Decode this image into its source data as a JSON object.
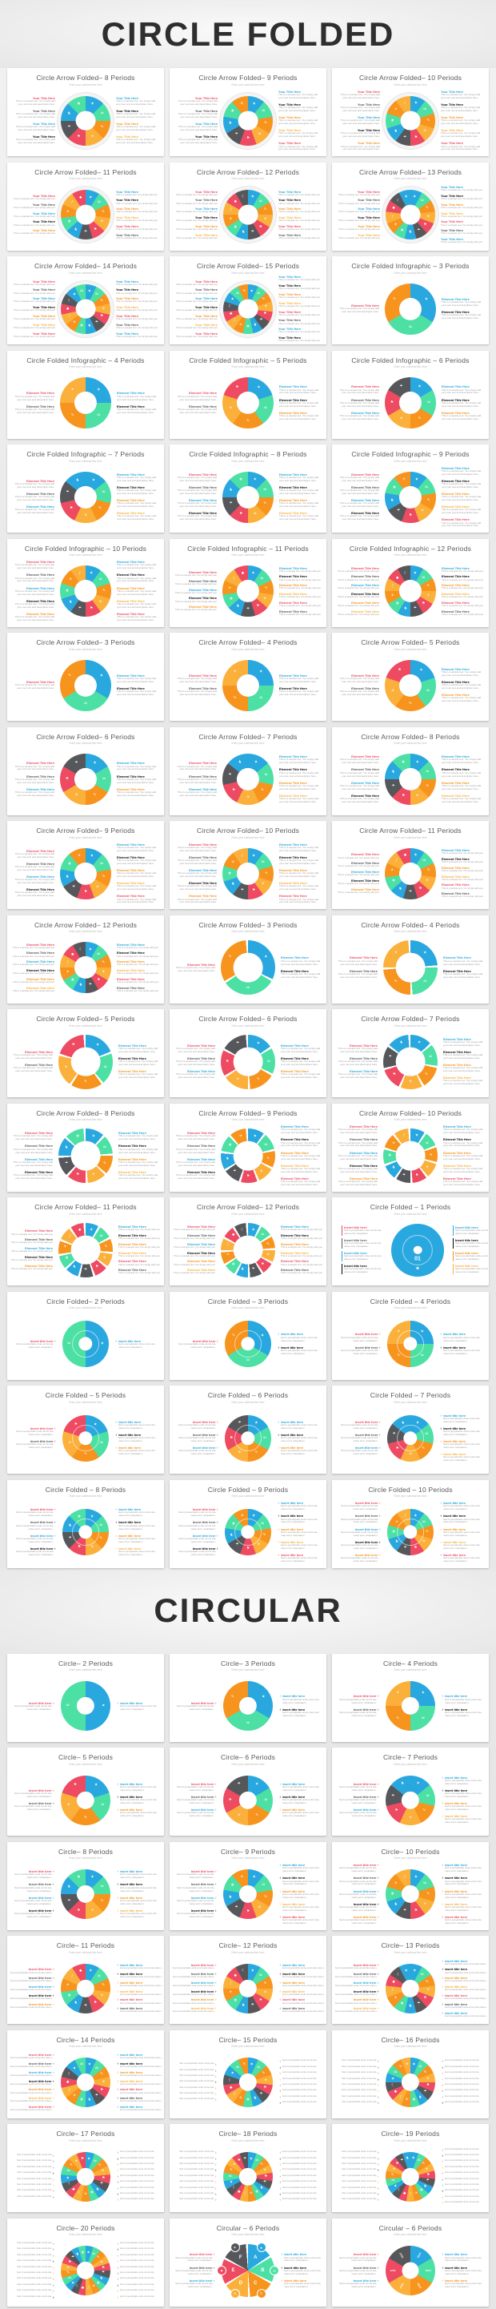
{
  "slide_common": {
    "subtitle": "Enter your subhead line here",
    "label_styles": {
      "your": {
        "label": "Your Title Here",
        "desc": "This is a sample text. You simply add your own text and description here."
      },
      "element": {
        "label": "Element Title Here",
        "desc": "This is a sample text. You simply add your own text and description here."
      },
      "insert": {
        "label": "Insert title here",
        "desc": "Sed ut perspiciatis unde omnis iste natus error voluptatem."
      },
      "lines": {
        "label": "",
        "desc": "Sed ut perspiciatis unde omnis iste"
      }
    },
    "palette": [
      "#29a8e0",
      "#4be9f",
      "#f7941e",
      "#fbb03b",
      "#ee4a62",
      "#56575b"
    ],
    "palette_mint": "#4ce0a4",
    "icons": [
      "★",
      "✉",
      "✎",
      "☀",
      "⚑",
      "☂",
      "♞",
      "❀",
      "✈",
      "♪",
      "◆",
      "☾"
    ]
  },
  "sections": [
    {
      "id": "circle-folded",
      "header": "CIRCLE FOLDED",
      "rows": [
        [
          {
            "title": "Circle Arrow Folded– 8 Periods",
            "n": 8,
            "style": "folded",
            "labels": "your"
          },
          {
            "title": "Circle Arrow Folded– 9 Periods",
            "n": 9,
            "style": "folded",
            "labels": "your"
          },
          {
            "title": "Circle Arrow Folded– 10 Periods",
            "n": 10,
            "style": "folded",
            "labels": "your"
          }
        ],
        [
          {
            "title": "Circle Arrow Folded– 11 Periods",
            "n": 11,
            "style": "folded",
            "labels": "your"
          },
          {
            "title": "Circle Arrow Folded– 12 Periods",
            "n": 12,
            "style": "folded",
            "labels": "your"
          },
          {
            "title": "Circle Arrow Folded– 13 Periods",
            "n": 13,
            "style": "folded",
            "labels": "your"
          }
        ],
        [
          {
            "title": "Circle Arrow Folded– 14 Periods",
            "n": 14,
            "style": "folded",
            "labels": "your"
          },
          {
            "title": "Circle Arrow Folded– 15 Periods",
            "n": 15,
            "style": "folded",
            "labels": "your"
          },
          {
            "title": "Circle Folded Infographic – 3 Periods",
            "n": 3,
            "style": "folded2",
            "labels": "element"
          }
        ],
        [
          {
            "title": "Circle Folded Infographic – 4 Periods",
            "n": 4,
            "style": "folded2",
            "labels": "element"
          },
          {
            "title": "Circle Folded Infographic – 5 Periods",
            "n": 5,
            "style": "folded2",
            "labels": "element"
          },
          {
            "title": "Circle Folded Infographic – 6 Periods",
            "n": 6,
            "style": "folded2",
            "labels": "element"
          }
        ],
        [
          {
            "title": "Circle Folded Infographic – 7 Periods",
            "n": 7,
            "style": "folded2",
            "labels": "element"
          },
          {
            "title": "Circle Folded Infographic – 8 Periods",
            "n": 8,
            "style": "folded2",
            "labels": "element"
          },
          {
            "title": "Circle Folded Infographic – 9 Periods",
            "n": 9,
            "style": "folded2",
            "labels": "element"
          }
        ],
        [
          {
            "title": "Circle Folded Infographic – 10 Periods",
            "n": 10,
            "style": "folded2",
            "labels": "element"
          },
          {
            "title": "Circle Folded Infographic – 11 Periods",
            "n": 11,
            "style": "folded2",
            "labels": "element"
          },
          {
            "title": "Circle Folded Infographic – 12 Periods",
            "n": 12,
            "style": "folded2",
            "labels": "element"
          }
        ],
        [
          {
            "title": "Circle Arrow Folded– 3 Periods",
            "n": 3,
            "style": "folded2",
            "labels": "element"
          },
          {
            "title": "Circle Arrow Folded– 4 Periods",
            "n": 4,
            "style": "folded2",
            "labels": "element"
          },
          {
            "title": "Circle Arrow Folded– 5 Periods",
            "n": 5,
            "style": "folded2",
            "labels": "element"
          }
        ],
        [
          {
            "title": "Circle Arrow Folded– 6 Periods",
            "n": 6,
            "style": "folded2",
            "labels": "element"
          },
          {
            "title": "Circle Arrow Folded– 7 Periods",
            "n": 7,
            "style": "folded2",
            "labels": "element"
          },
          {
            "title": "Circle Arrow Folded– 8 Periods",
            "n": 8,
            "style": "folded2",
            "labels": "element"
          }
        ],
        [
          {
            "title": "Circle Arrow Folded– 9 Periods",
            "n": 9,
            "style": "folded2",
            "labels": "element"
          },
          {
            "title": "Circle Arrow Folded– 10 Periods",
            "n": 10,
            "style": "folded2",
            "labels": "element"
          },
          {
            "title": "Circle Arrow Folded– 11 Periods",
            "n": 11,
            "style": "folded2",
            "labels": "element"
          }
        ],
        [
          {
            "title": "Circle Arrow Folded– 12 Periods",
            "n": 12,
            "style": "folded2",
            "labels": "element"
          },
          {
            "title": "Circle Arrow Folded– 3 Periods",
            "n": 3,
            "style": "arrow",
            "labels": "element"
          },
          {
            "title": "Circle Arrow Folded– 4 Periods",
            "n": 4,
            "style": "arrow",
            "labels": "element"
          }
        ],
        [
          {
            "title": "Circle Arrow Folded– 5 Periods",
            "n": 5,
            "style": "arrow",
            "labels": "element"
          },
          {
            "title": "Circle Arrow Folded– 6 Periods",
            "n": 6,
            "style": "arrow",
            "labels": "element"
          },
          {
            "title": "Circle Arrow Folded– 7 Periods",
            "n": 7,
            "style": "arrow",
            "labels": "element"
          }
        ],
        [
          {
            "title": "Circle Arrow Folded– 8 Periods",
            "n": 8,
            "style": "arrow",
            "labels": "element"
          },
          {
            "title": "Circle Arrow Folded– 9 Periods",
            "n": 9,
            "style": "arrow",
            "labels": "element"
          },
          {
            "title": "Circle Arrow Folded– 10 Periods",
            "n": 10,
            "style": "arrow",
            "labels": "element"
          }
        ],
        [
          {
            "title": "Circle Arrow Folded– 11 Periods",
            "n": 11,
            "style": "arrow",
            "labels": "element"
          },
          {
            "title": "Circle Arrow Folded– 12 Periods",
            "n": 12,
            "style": "arrow",
            "labels": "element"
          },
          {
            "title": "Circle Folded – 1 Periods",
            "n": 1,
            "style": "single",
            "labels": "insert",
            "center_label": "01"
          }
        ],
        [
          {
            "title": "Circle Folded– 2 Periods",
            "n": 2,
            "style": "pie",
            "labels": "insert"
          },
          {
            "title": "Circle Folded – 3 Periods",
            "n": 3,
            "style": "pie",
            "labels": "insert"
          },
          {
            "title": "Circle Folded – 4 Periods",
            "n": 4,
            "style": "pie",
            "labels": "insert"
          }
        ],
        [
          {
            "title": "Circle Folded – 5 Periods",
            "n": 5,
            "style": "pie",
            "labels": "insert"
          },
          {
            "title": "Circle Folded – 6 Periods",
            "n": 6,
            "style": "pie",
            "labels": "insert"
          },
          {
            "title": "Circle Folded – 7 Periods",
            "n": 7,
            "style": "pie",
            "labels": "insert"
          }
        ],
        [
          {
            "title": "Circle Folded – 8 Periods",
            "n": 8,
            "style": "pie",
            "labels": "insert"
          },
          {
            "title": "Circle Folded – 9 Periods",
            "n": 9,
            "style": "pie",
            "labels": "insert"
          },
          {
            "title": "Circle Folded – 10 Periods",
            "n": 10,
            "style": "pie",
            "labels": "insert"
          }
        ]
      ]
    },
    {
      "id": "circular",
      "header": "CIRCULAR",
      "rows": [
        [
          {
            "title": "Circle– 2 Periods",
            "n": 2,
            "style": "circ",
            "labels": "insert"
          },
          {
            "title": "Circle– 3 Periods",
            "n": 3,
            "style": "circ",
            "labels": "insert"
          },
          {
            "title": "Circle– 4 Periods",
            "n": 4,
            "style": "circ",
            "labels": "insert"
          }
        ],
        [
          {
            "title": "Circle– 5 Periods",
            "n": 5,
            "style": "circ",
            "labels": "insert"
          },
          {
            "title": "Circle– 6 Periods",
            "n": 6,
            "style": "circ",
            "labels": "insert"
          },
          {
            "title": "Circle– 7 Periods",
            "n": 7,
            "style": "circ",
            "labels": "insert"
          }
        ],
        [
          {
            "title": "Circle– 8 Periods",
            "n": 8,
            "style": "circ",
            "labels": "insert"
          },
          {
            "title": "Circle– 9 Periods",
            "n": 9,
            "style": "circ",
            "labels": "insert"
          },
          {
            "title": "Circle– 10 Periods",
            "n": 10,
            "style": "circ",
            "labels": "insert"
          }
        ],
        [
          {
            "title": "Circle– 11 Periods",
            "n": 11,
            "style": "circ",
            "labels": "insert"
          },
          {
            "title": "Circle– 12 Periods",
            "n": 12,
            "style": "circ",
            "labels": "insert"
          },
          {
            "title": "Circle– 13 Periods",
            "n": 13,
            "style": "circ",
            "labels": "insert"
          }
        ],
        [
          {
            "title": "Circle– 14 Periods",
            "n": 14,
            "style": "circ",
            "labels": "insert"
          },
          {
            "title": "Circle– 15 Periods",
            "n": 15,
            "style": "circ",
            "labels": "lines"
          },
          {
            "title": "Circle– 16 Periods",
            "n": 16,
            "style": "circ",
            "labels": "lines"
          }
        ],
        [
          {
            "title": "Circle– 17 Periods",
            "n": 17,
            "style": "circ",
            "labels": "lines"
          },
          {
            "title": "Circle– 18 Periods",
            "n": 18,
            "style": "circ",
            "labels": "lines"
          },
          {
            "title": "Circle– 19 Periods",
            "n": 19,
            "style": "circ",
            "labels": "lines"
          }
        ],
        [
          {
            "title": "Circle– 20 Periods",
            "n": 20,
            "style": "circ",
            "labels": "lines"
          },
          {
            "title": "Circular – 6 Periods",
            "n": 6,
            "style": "flower",
            "labels": "insert",
            "letters": [
              "A",
              "B",
              "C",
              "D",
              "E",
              "F"
            ]
          },
          {
            "title": "Circular – 6 Periods",
            "n": 6,
            "style": "donut-text",
            "labels": "insert",
            "letters": [
              "TEXT",
              "TEXT",
              "TEXT",
              "TEXT",
              "TEXT",
              "TEXT"
            ]
          }
        ]
      ]
    }
  ]
}
